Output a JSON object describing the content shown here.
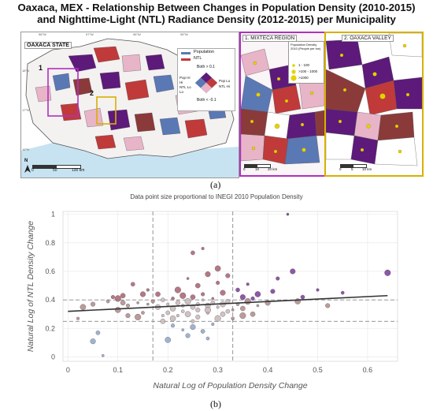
{
  "title": {
    "line1": "Oaxaca, MEX - Relationship Between Changes in Population Density (2010-2015)",
    "line2": "and Nighttime-Light (NTL) Radiance Density (2012-2015) per Municipality"
  },
  "map": {
    "state_label": "OAXACA STATE",
    "region1_label": "1. MIXTECA REGION",
    "region2_label": "2. OAXACA VALLEY",
    "callout1": "1",
    "callout2": "2",
    "scale_state": [
      "0",
      "50",
      "100 km"
    ],
    "scale_mixteca": [
      "0",
      "10",
      "20 km"
    ],
    "scale_valley": [
      "0",
      "5",
      "10 km"
    ],
    "north": "N",
    "lat_ticks": [
      "18°N",
      "17°N",
      "16°N"
    ],
    "lon_ticks": [
      "98°W",
      "97°W",
      "96°W",
      "95°W"
    ],
    "legend": {
      "population": "Population",
      "ntl": "NTL",
      "both_high": "Both > 0.1",
      "both_low": "Both < -0.1",
      "pop_hi": "Pop Hi",
      "ntl_lo": "NTL Lo",
      "pop_lo": "Pop Lo",
      "ntl_hi": "NTL Hi",
      "hi_short": "Hi",
      "lo_short": "Lo",
      "density_title": "Population Density 2010 (People per km)",
      "density_classes": [
        "1 - 100",
        ">100 - 1000",
        ">1000"
      ]
    },
    "colors": {
      "pop_blue": "#5a78b4",
      "ntl_red": "#c03a3a",
      "both_purple": "#5d1a7a",
      "light_pink": "#e8b4c8",
      "brown": "#8b3a3a",
      "yellow_point": "#e6d200",
      "mixteca_border": "#b030c0",
      "valley_border": "#d8b000"
    }
  },
  "captions": {
    "a": "(a)",
    "b": "(b)"
  },
  "plot_subtitle": "Data point size proportional to INEGI 2010 Population Density",
  "chart_data": {
    "type": "scatter",
    "xlabel": "Natural Log of Population Density Change",
    "ylabel": "Natural Log of NTL Density Change",
    "xlim": [
      -0.01,
      0.66
    ],
    "ylim": [
      -0.03,
      1.02
    ],
    "x_ticks": [
      "0",
      "0.1",
      "0.2",
      "0.3",
      "0.4",
      "0.5",
      "0.6"
    ],
    "y_ticks": [
      "0",
      "0.2",
      "0.4",
      "0.6",
      "0.8",
      "1"
    ],
    "x_tick_values": [
      0,
      0.1,
      0.2,
      0.3,
      0.4,
      0.5,
      0.6
    ],
    "y_tick_values": [
      0,
      0.2,
      0.4,
      0.6,
      0.8,
      1.0
    ],
    "vertical_reference_lines": [
      0.17,
      0.33
    ],
    "horizontal_reference_lines": [
      0.25,
      0.4
    ],
    "trendline": {
      "x": [
        0,
        0.64
      ],
      "y": [
        0.32,
        0.43
      ]
    },
    "grid": true,
    "points": [
      [
        0.07,
        0.01
      ],
      [
        0.05,
        0.11
      ],
      [
        0.06,
        0.17
      ],
      [
        0.02,
        0.27
      ],
      [
        0.03,
        0.35
      ],
      [
        0.05,
        0.37
      ],
      [
        0.08,
        0.39
      ],
      [
        0.1,
        0.41
      ],
      [
        0.11,
        0.43
      ],
      [
        0.12,
        0.36
      ],
      [
        0.14,
        0.38
      ],
      [
        0.15,
        0.44
      ],
      [
        0.13,
        0.51
      ],
      [
        0.16,
        0.47
      ],
      [
        0.1,
        0.33
      ],
      [
        0.12,
        0.29
      ],
      [
        0.15,
        0.31
      ],
      [
        0.14,
        0.28
      ],
      [
        0.11,
        0.38
      ],
      [
        0.09,
        0.42
      ],
      [
        0.16,
        0.37
      ],
      [
        0.18,
        0.35
      ],
      [
        0.19,
        0.4
      ],
      [
        0.2,
        0.37
      ],
      [
        0.21,
        0.34
      ],
      [
        0.22,
        0.38
      ],
      [
        0.23,
        0.36
      ],
      [
        0.24,
        0.39
      ],
      [
        0.25,
        0.35
      ],
      [
        0.26,
        0.37
      ],
      [
        0.27,
        0.4
      ],
      [
        0.28,
        0.36
      ],
      [
        0.29,
        0.38
      ],
      [
        0.3,
        0.35
      ],
      [
        0.31,
        0.37
      ],
      [
        0.32,
        0.39
      ],
      [
        0.21,
        0.41
      ],
      [
        0.23,
        0.43
      ],
      [
        0.25,
        0.42
      ],
      [
        0.27,
        0.44
      ],
      [
        0.29,
        0.41
      ],
      [
        0.31,
        0.45
      ],
      [
        0.2,
        0.31
      ],
      [
        0.22,
        0.29
      ],
      [
        0.24,
        0.3
      ],
      [
        0.26,
        0.28
      ],
      [
        0.28,
        0.31
      ],
      [
        0.3,
        0.27
      ],
      [
        0.19,
        0.25
      ],
      [
        0.21,
        0.22
      ],
      [
        0.23,
        0.19
      ],
      [
        0.25,
        0.21
      ],
      [
        0.27,
        0.18
      ],
      [
        0.29,
        0.23
      ],
      [
        0.2,
        0.12
      ],
      [
        0.24,
        0.15
      ],
      [
        0.28,
        0.13
      ],
      [
        0.22,
        0.47
      ],
      [
        0.26,
        0.5
      ],
      [
        0.3,
        0.52
      ],
      [
        0.24,
        0.55
      ],
      [
        0.28,
        0.58
      ],
      [
        0.25,
        0.73
      ],
      [
        0.27,
        0.76
      ],
      [
        0.3,
        0.62
      ],
      [
        0.32,
        0.57
      ],
      [
        0.34,
        0.37
      ],
      [
        0.36,
        0.39
      ],
      [
        0.35,
        0.34
      ],
      [
        0.37,
        0.41
      ],
      [
        0.38,
        0.36
      ],
      [
        0.4,
        0.38
      ],
      [
        0.34,
        0.47
      ],
      [
        0.36,
        0.51
      ],
      [
        0.38,
        0.44
      ],
      [
        0.41,
        0.46
      ],
      [
        0.33,
        0.27
      ],
      [
        0.35,
        0.29
      ],
      [
        0.37,
        0.3
      ],
      [
        0.42,
        0.55
      ],
      [
        0.44,
        1.0
      ],
      [
        0.45,
        0.6
      ],
      [
        0.47,
        0.42
      ],
      [
        0.5,
        0.47
      ],
      [
        0.46,
        0.39
      ],
      [
        0.52,
        0.36
      ],
      [
        0.55,
        0.45
      ],
      [
        0.64,
        0.59
      ],
      [
        0.18,
        0.44
      ],
      [
        0.17,
        0.39
      ],
      [
        0.33,
        0.33
      ],
      [
        0.35,
        0.42
      ],
      [
        0.32,
        0.32
      ],
      [
        0.19,
        0.29
      ],
      [
        0.21,
        0.27
      ],
      [
        0.26,
        0.33
      ],
      [
        0.23,
        0.32
      ],
      [
        0.28,
        0.33
      ],
      [
        0.31,
        0.3
      ],
      [
        0.25,
        0.25
      ]
    ]
  }
}
